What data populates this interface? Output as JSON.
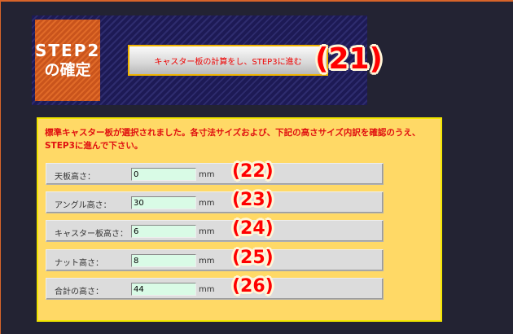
{
  "step_box": {
    "line1": "STEP2",
    "line2": "の確定"
  },
  "proceed_button": "キャスター板の計算をし、STEP3に進む",
  "callouts": [
    "(21)",
    "(22)",
    "(23)",
    "(24)",
    "(25)",
    "(26)"
  ],
  "message": "標準キャスター板が選択されました。各寸法サイズおよび、下記の高さサイズ内訳を確認のうえ、STEP3に進んで下さい。",
  "rows": [
    {
      "label": "天板高さ：",
      "value": "0",
      "unit": "mm"
    },
    {
      "label": "アングル高さ：",
      "value": "30",
      "unit": "mm"
    },
    {
      "label": "キャスター板高さ：",
      "value": "6",
      "unit": "mm"
    },
    {
      "label": "ナット高さ：",
      "value": "8",
      "unit": "mm"
    },
    {
      "label": "合計の高さ：",
      "value": "44",
      "unit": "mm"
    }
  ]
}
